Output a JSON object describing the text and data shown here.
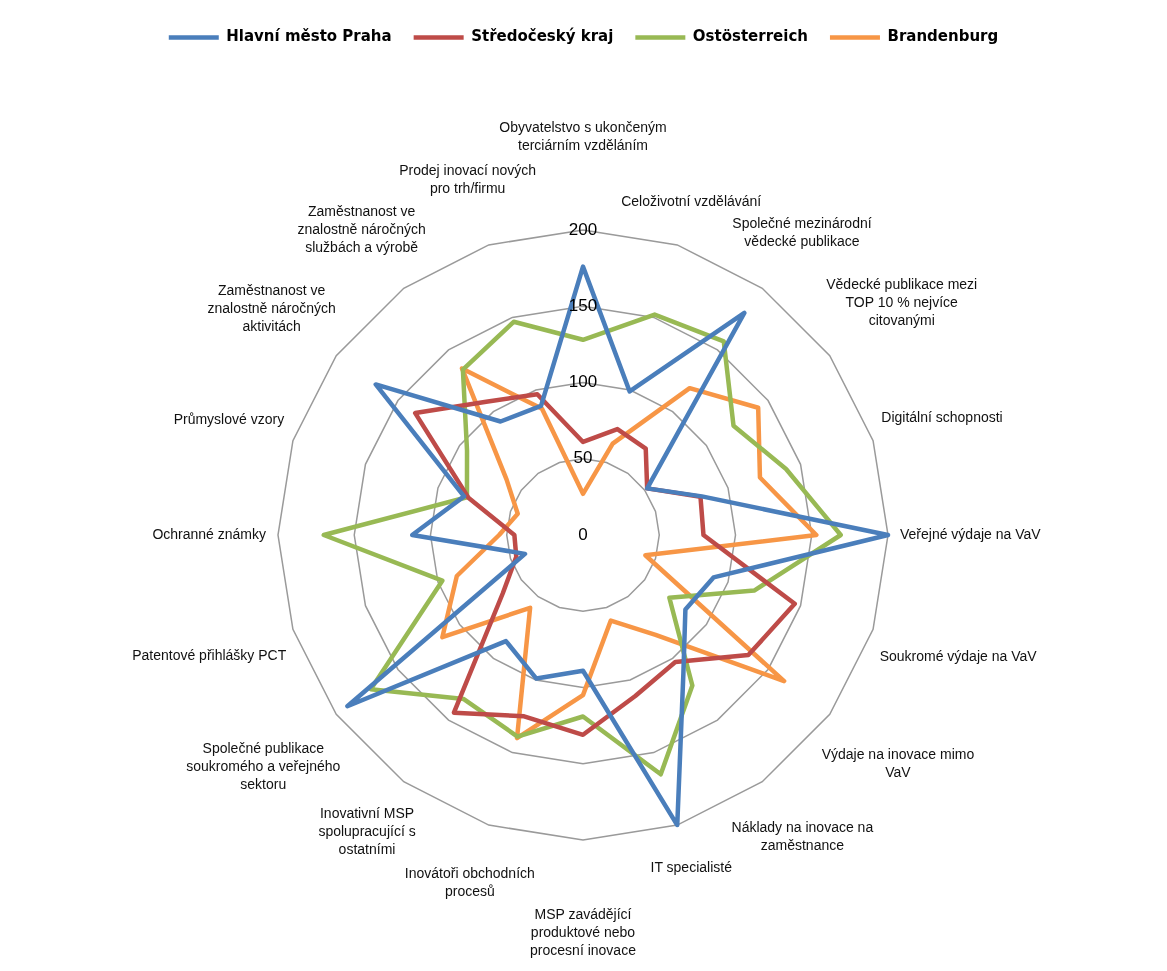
{
  "chart_data": {
    "type": "radar",
    "categories": [
      "Obyvatelstvo s ukončeným terciárním vzděláním",
      "Celoživotní vzdělávání",
      "Společné mezinárodní vědecké publikace",
      "Vědecké publikace mezi TOP 10 % nejvíce citovanými",
      "Digitální schopnosti",
      "Veřejné výdaje na VaV",
      "Soukromé výdaje na VaV",
      "Výdaje na inovace mimo VaV",
      "Náklady na inovace na zaměstnance",
      "IT specialisté",
      "MSP zavádějící produktové nebo procesní inovace",
      "Inovátoři obchodních procesů",
      "Inovativní MSP spolupracující s ostatními",
      "Společné publikace soukromého a veřejného sektoru",
      "Patentové přihlášky PCT",
      "Ochranné známky",
      "Průmyslové vzory",
      "Zaměstnanost ve znalostně náročných aktivitách",
      "Zaměstnanost ve znalostně náročných službách a výrobě",
      "Prodej inovací nových pro trh/firmu"
    ],
    "series": [
      {
        "name": "Hlavní město Praha",
        "color": "#4a7ebb",
        "values": [
          176,
          99,
          180,
          52,
          82,
          200,
          90,
          83,
          112,
          200,
          89,
          99,
          86,
          191,
          40,
          112,
          82,
          168,
          92,
          89
        ]
      },
      {
        "name": "Středočeský kraj",
        "color": "#be4b48",
        "values": [
          61,
          73,
          70,
          52,
          81,
          79,
          146,
          134,
          103,
          111,
          131,
          125,
          144,
          65,
          46,
          45,
          79,
          136,
          108,
          97
        ]
      },
      {
        "name": "Ostösterreich",
        "color": "#98b954",
        "values": [
          128,
          152,
          157,
          122,
          140,
          169,
          118,
          70,
          122,
          165,
          119,
          139,
          133,
          172,
          97,
          170,
          80,
          94,
          134,
          147
        ]
      },
      {
        "name": "Brandenburg",
        "color": "#f79646",
        "values": [
          27,
          63,
          119,
          142,
          122,
          153,
          43,
          163,
          81,
          59,
          105,
          140,
          59,
          114,
          87,
          55,
          45,
          62,
          135,
          87
        ]
      }
    ],
    "ylim": [
      0,
      200
    ],
    "yticks": [
      0,
      50,
      100,
      150,
      200
    ],
    "grid": true,
    "legend": "top"
  }
}
